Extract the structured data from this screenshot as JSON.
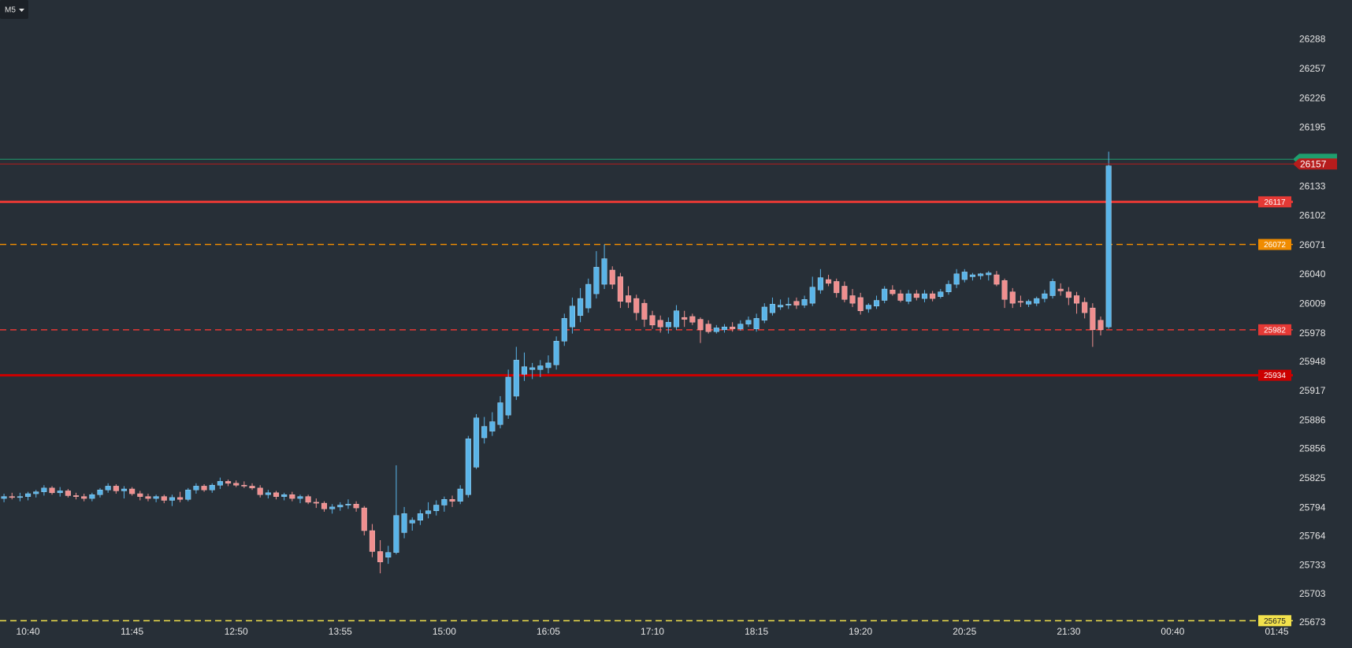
{
  "timeframe": "M5",
  "chart_data": {
    "type": "candlestick",
    "up_color": "#5ab4e8",
    "down_color": "#f08f8f",
    "ylim": [
      25652,
      26330
    ],
    "yticks": [
      26288,
      26257,
      26226,
      26195,
      26133,
      26102,
      26071,
      26040,
      26009,
      25978,
      25948,
      25917,
      25886,
      25856,
      25825,
      25794,
      25764,
      25733,
      25703,
      25673
    ],
    "categories": [
      null,
      null,
      null,
      "10:40",
      null,
      null,
      null,
      null,
      null,
      null,
      null,
      null,
      null,
      null,
      null,
      null,
      "11:45",
      null,
      null,
      null,
      null,
      null,
      null,
      null,
      null,
      null,
      null,
      null,
      null,
      "12:50",
      null,
      null,
      null,
      null,
      null,
      null,
      null,
      null,
      null,
      null,
      null,
      null,
      "13:55",
      null,
      null,
      null,
      null,
      null,
      null,
      null,
      null,
      null,
      null,
      null,
      null,
      "15:00",
      null,
      null,
      null,
      null,
      null,
      null,
      null,
      null,
      null,
      null,
      null,
      null,
      "16:05",
      null,
      null,
      null,
      null,
      null,
      null,
      null,
      null,
      null,
      null,
      null,
      null,
      "17:10",
      null,
      null,
      null,
      null,
      null,
      null,
      null,
      null,
      null,
      null,
      null,
      null,
      "18:15",
      null,
      null,
      null,
      null,
      null,
      null,
      null,
      null,
      null,
      null,
      null,
      null,
      "19:20",
      null,
      null,
      null,
      null,
      null,
      null,
      null,
      null,
      null,
      null,
      null,
      null,
      "20:25",
      null,
      null,
      null,
      null,
      null,
      null,
      null,
      null,
      null,
      null,
      null,
      null,
      "21:30",
      null,
      null,
      null,
      null,
      null,
      null,
      null,
      null,
      null,
      null,
      null,
      null,
      "00:40",
      null,
      null,
      null,
      null,
      null,
      null,
      null,
      null,
      null,
      null,
      null,
      null,
      "01:45",
      null
    ],
    "values": [
      [
        25804,
        25809,
        25800,
        25806
      ],
      [
        25806,
        25810,
        25803,
        25805
      ],
      [
        25805,
        25810,
        25801,
        25806
      ],
      [
        25806,
        25811,
        25802,
        25809
      ],
      [
        25809,
        25813,
        25805,
        25811
      ],
      [
        25811,
        25818,
        25807,
        25815
      ],
      [
        25815,
        25817,
        25808,
        25810
      ],
      [
        25810,
        25816,
        25806,
        25812
      ],
      [
        25812,
        25814,
        25805,
        25807
      ],
      [
        25807,
        25810,
        25803,
        25806
      ],
      [
        25806,
        25809,
        25801,
        25804
      ],
      [
        25804,
        25810,
        25801,
        25808
      ],
      [
        25808,
        25815,
        25805,
        25813
      ],
      [
        25813,
        25820,
        25810,
        25817
      ],
      [
        25817,
        25819,
        25809,
        25812
      ],
      [
        25812,
        25817,
        25804,
        25814
      ],
      [
        25814,
        25816,
        25807,
        25809
      ],
      [
        25809,
        25812,
        25802,
        25806
      ],
      [
        25806,
        25809,
        25801,
        25804
      ],
      [
        25804,
        25808,
        25800,
        25806
      ],
      [
        25806,
        25808,
        25799,
        25802
      ],
      [
        25802,
        25808,
        25796,
        25805
      ],
      [
        25805,
        25811,
        25800,
        25803
      ],
      [
        25803,
        25815,
        25801,
        25813
      ],
      [
        25813,
        25820,
        25809,
        25817
      ],
      [
        25817,
        25819,
        25811,
        25813
      ],
      [
        25813,
        25820,
        25810,
        25818
      ],
      [
        25818,
        25826,
        25814,
        25822
      ],
      [
        25822,
        25824,
        25817,
        25820
      ],
      [
        25820,
        25823,
        25816,
        25818
      ],
      [
        25818,
        25822,
        25815,
        25817
      ],
      [
        25817,
        25820,
        25813,
        25815
      ],
      [
        25815,
        25818,
        25805,
        25808
      ],
      [
        25808,
        25813,
        25804,
        25810
      ],
      [
        25810,
        25812,
        25803,
        25806
      ],
      [
        25806,
        25810,
        25802,
        25808
      ],
      [
        25808,
        25811,
        25801,
        25804
      ],
      [
        25804,
        25808,
        25799,
        25806
      ],
      [
        25806,
        25808,
        25798,
        25800
      ],
      [
        25800,
        25804,
        25794,
        25799
      ],
      [
        25799,
        25801,
        25790,
        25793
      ],
      [
        25793,
        25798,
        25788,
        25795
      ],
      [
        25795,
        25800,
        25791,
        25797
      ],
      [
        25797,
        25803,
        25793,
        25798
      ],
      [
        25798,
        25801,
        25790,
        25794
      ],
      [
        25794,
        25796,
        25765,
        25770
      ],
      [
        25770,
        25777,
        25742,
        25748
      ],
      [
        25748,
        25760,
        25725,
        25737
      ],
      [
        25742,
        25754,
        25735,
        25747
      ],
      [
        25747,
        25839,
        25745,
        25786
      ],
      [
        25768,
        25795,
        25762,
        25788
      ],
      [
        25778,
        25784,
        25770,
        25781
      ],
      [
        25781,
        25792,
        25776,
        25788
      ],
      [
        25788,
        25800,
        25783,
        25791
      ],
      [
        25791,
        25802,
        25786,
        25797
      ],
      [
        25797,
        25806,
        25790,
        25803
      ],
      [
        25803,
        25807,
        25795,
        25801
      ],
      [
        25801,
        25818,
        25798,
        25814
      ],
      [
        25808,
        25870,
        25805,
        25867
      ],
      [
        25837,
        25893,
        25835,
        25889
      ],
      [
        25868,
        25890,
        25862,
        25880
      ],
      [
        25875,
        25895,
        25870,
        25885
      ],
      [
        25882,
        25912,
        25878,
        25905
      ],
      [
        25892,
        25940,
        25888,
        25932
      ],
      [
        25912,
        25964,
        25908,
        25950
      ],
      [
        25935,
        25958,
        25928,
        25943
      ],
      [
        25940,
        25947,
        25930,
        25942
      ],
      [
        25940,
        25950,
        25932,
        25944
      ],
      [
        25942,
        25955,
        25936,
        25947
      ],
      [
        25945,
        25975,
        25940,
        25970
      ],
      [
        25970,
        25999,
        25965,
        25994
      ],
      [
        25985,
        26016,
        25978,
        26007
      ],
      [
        25997,
        26026,
        25990,
        26015
      ],
      [
        26005,
        26036,
        26000,
        26030
      ],
      [
        26020,
        26065,
        26015,
        26048
      ],
      [
        26030,
        26072,
        26025,
        26057
      ],
      [
        26045,
        26049,
        26025,
        26030
      ],
      [
        26038,
        26042,
        26005,
        26012
      ],
      [
        26018,
        26028,
        26005,
        26011
      ],
      [
        26015,
        26019,
        25992,
        26000
      ],
      [
        26010,
        26014,
        25985,
        25993
      ],
      [
        25997,
        26002,
        25983,
        25987
      ],
      [
        25992,
        25997,
        25979,
        25985
      ],
      [
        25985,
        25995,
        25978,
        25990
      ],
      [
        25985,
        26008,
        25982,
        26002
      ],
      [
        25995,
        26002,
        25985,
        25993
      ],
      [
        25996,
        25999,
        25987,
        25990
      ],
      [
        25993,
        25995,
        25968,
        25982
      ],
      [
        25988,
        25992,
        25978,
        25980
      ],
      [
        25980,
        25987,
        25978,
        25984
      ],
      [
        25982,
        25988,
        25979,
        25985
      ],
      [
        25985,
        25990,
        25980,
        25983
      ],
      [
        25983,
        25992,
        25981,
        25988
      ],
      [
        25988,
        25996,
        25985,
        25992
      ],
      [
        25983,
        25999,
        25980,
        25994
      ],
      [
        25992,
        26010,
        25989,
        26006
      ],
      [
        26000,
        26016,
        25997,
        26009
      ],
      [
        26006,
        26014,
        26003,
        26008
      ],
      [
        26008,
        26016,
        26004,
        26009
      ],
      [
        26012,
        26016,
        26004,
        26008
      ],
      [
        26008,
        26018,
        26005,
        26014
      ],
      [
        26010,
        26038,
        26007,
        26027
      ],
      [
        26024,
        26046,
        26020,
        26037
      ],
      [
        26035,
        26040,
        26028,
        26031
      ],
      [
        26033,
        26036,
        26016,
        26021
      ],
      [
        26028,
        26033,
        26011,
        26014
      ],
      [
        26018,
        26025,
        26006,
        26010
      ],
      [
        26016,
        26021,
        25998,
        26002
      ],
      [
        26004,
        26010,
        26000,
        26008
      ],
      [
        26007,
        26018,
        26004,
        26013
      ],
      [
        26013,
        26028,
        26010,
        26025
      ],
      [
        26024,
        26029,
        26018,
        26020
      ],
      [
        26020,
        26024,
        26011,
        26013
      ],
      [
        26012,
        26024,
        26009,
        26020
      ],
      [
        26020,
        26024,
        26013,
        26016
      ],
      [
        26015,
        26024,
        26011,
        26020
      ],
      [
        26020,
        26023,
        26012,
        26015
      ],
      [
        26017,
        26025,
        26015,
        26022
      ],
      [
        26022,
        26034,
        26019,
        26030
      ],
      [
        26030,
        26046,
        26026,
        26041
      ],
      [
        26035,
        26046,
        26032,
        26043
      ],
      [
        26038,
        26042,
        26034,
        26040
      ],
      [
        26039,
        26042,
        26035,
        26041
      ],
      [
        26040,
        26044,
        26034,
        26042
      ],
      [
        26040,
        26044,
        26028,
        26030
      ],
      [
        26034,
        26036,
        26005,
        26014
      ],
      [
        26022,
        26026,
        26005,
        26010
      ],
      [
        26012,
        26018,
        26006,
        26011
      ],
      [
        26009,
        26014,
        26006,
        26012
      ],
      [
        26010,
        26017,
        26007,
        26015
      ],
      [
        26015,
        26024,
        26011,
        26020
      ],
      [
        26018,
        26036,
        26015,
        26033
      ],
      [
        26025,
        26031,
        26018,
        26023
      ],
      [
        26022,
        26027,
        26008,
        26016
      ],
      [
        26018,
        26022,
        25999,
        26010
      ],
      [
        26011,
        26016,
        25994,
        26000
      ],
      [
        26005,
        26010,
        25964,
        25982
      ],
      [
        25992,
        25996,
        25976,
        25982
      ],
      [
        25985,
        26170,
        25983,
        26155
      ],
      null,
      null,
      null,
      null,
      null,
      null,
      null,
      null,
      null,
      null,
      null,
      null,
      null,
      null,
      null,
      null,
      null,
      null,
      null,
      null,
      null,
      null
    ],
    "ask_line": {
      "value": 26162,
      "color": "#1f9e6e"
    },
    "current_price": {
      "value": 26157,
      "color": "#b71c1c"
    },
    "levels": [
      {
        "value": 26117,
        "color": "#e53935",
        "style": "solid"
      },
      {
        "value": 26072,
        "color": "#f08c00",
        "style": "dashed"
      },
      {
        "value": 25982,
        "color": "#e53935",
        "style": "dashed"
      },
      {
        "value": 25934,
        "color": "#cc0000",
        "style": "solid"
      },
      {
        "value": 25675,
        "color": "#f2e14c",
        "style": "dashed"
      }
    ]
  }
}
